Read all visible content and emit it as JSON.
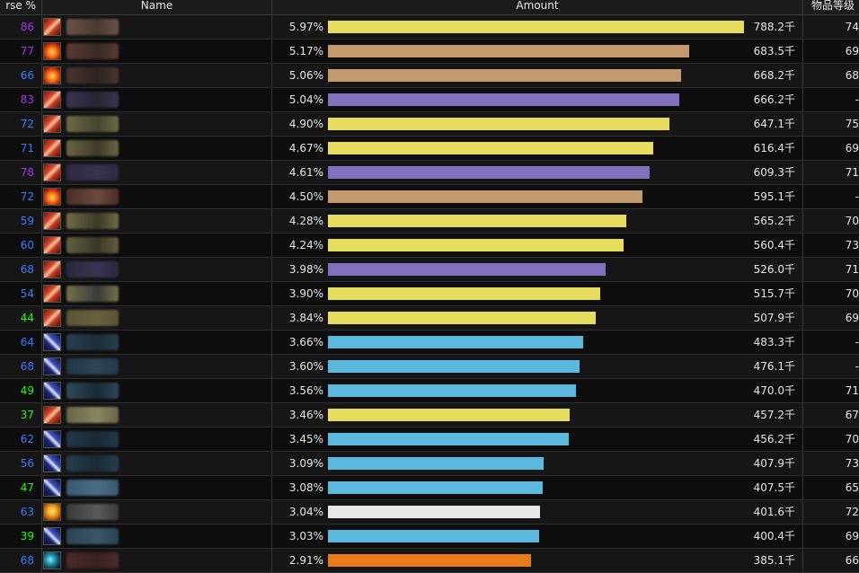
{
  "header": {
    "parse_label": "rse %",
    "name_label": "Name",
    "amount_label": "Amount",
    "ilvl_label": "物品等级"
  },
  "rows": [
    {
      "parse": "86",
      "parse_color": "#a335ee",
      "icon": "dh-icon",
      "icon_style": "icon-dh",
      "name_colors": [
        "#6b5346",
        "#4a3a33"
      ],
      "pct": "5.97%",
      "fraction": 0.5975,
      "bar_color": "#e6dd5e",
      "amount": "788.2千",
      "ilvl": "74"
    },
    {
      "parse": "77",
      "parse_color": "#a335ee",
      "icon": "fire-icon",
      "icon_style": "icon-fire",
      "name_colors": [
        "#5a3a33",
        "#3a2a24"
      ],
      "pct": "5.17%",
      "fraction": 0.5182,
      "bar_color": "#c29a6d",
      "amount": "683.5千",
      "ilvl": "69"
    },
    {
      "parse": "66",
      "parse_color": "#3a7bff",
      "icon": "fire-icon",
      "icon_style": "icon-fire",
      "name_colors": [
        "#4a3530",
        "#2e2320"
      ],
      "pct": "5.06%",
      "fraction": 0.5066,
      "bar_color": "#c29a6d",
      "amount": "668.2千",
      "ilvl": "68"
    },
    {
      "parse": "83",
      "parse_color": "#a335ee",
      "icon": "dh-icon",
      "icon_style": "icon-dh",
      "name_colors": [
        "#3c3355",
        "#2a2430"
      ],
      "pct": "5.04%",
      "fraction": 0.5051,
      "bar_color": "#8471bd",
      "amount": "666.2千",
      "ilvl": "-"
    },
    {
      "parse": "72",
      "parse_color": "#3a7bff",
      "icon": "dh-icon",
      "icon_style": "icon-dh",
      "name_colors": [
        "#6e6a48",
        "#474530"
      ],
      "pct": "4.90%",
      "fraction": 0.4906,
      "bar_color": "#e6dd5e",
      "amount": "647.1千",
      "ilvl": "75"
    },
    {
      "parse": "71",
      "parse_color": "#3a7bff",
      "icon": "dh-icon",
      "icon_style": "icon-dh",
      "name_colors": [
        "#6a6545",
        "#3e3b2a"
      ],
      "pct": "4.67%",
      "fraction": 0.4673,
      "bar_color": "#e6dd5e",
      "amount": "616.4千",
      "ilvl": "69"
    },
    {
      "parse": "78",
      "parse_color": "#a335ee",
      "icon": "dh-icon",
      "icon_style": "icon-dh",
      "name_colors": [
        "#2f2a44",
        "#3a3050"
      ],
      "pct": "4.61%",
      "fraction": 0.4619,
      "bar_color": "#8471bd",
      "amount": "609.3千",
      "ilvl": "71"
    },
    {
      "parse": "72",
      "parse_color": "#3a7bff",
      "icon": "fire-icon",
      "icon_style": "icon-fire",
      "name_colors": [
        "#4a3028",
        "#6a4a40"
      ],
      "pct": "4.50%",
      "fraction": 0.4512,
      "bar_color": "#c29a6d",
      "amount": "595.1千",
      "ilvl": "-"
    },
    {
      "parse": "59",
      "parse_color": "#3a7bff",
      "icon": "dh-icon",
      "icon_style": "icon-dh",
      "name_colors": [
        "#6e6b48",
        "#3c3a28"
      ],
      "pct": "4.28%",
      "fraction": 0.4285,
      "bar_color": "#e6dd5e",
      "amount": "565.2千",
      "ilvl": "70"
    },
    {
      "parse": "60",
      "parse_color": "#3a7bff",
      "icon": "dh-icon",
      "icon_style": "icon-dh",
      "name_colors": [
        "#625f40",
        "#3a3826"
      ],
      "pct": "4.24%",
      "fraction": 0.4249,
      "bar_color": "#e6dd5e",
      "amount": "560.4千",
      "ilvl": "73"
    },
    {
      "parse": "68",
      "parse_color": "#3a7bff",
      "icon": "dh-icon",
      "icon_style": "icon-dh",
      "name_colors": [
        "#2c2840",
        "#3a3352"
      ],
      "pct": "3.98%",
      "fraction": 0.3988,
      "bar_color": "#8471bd",
      "amount": "526.0千",
      "ilvl": "71"
    },
    {
      "parse": "54",
      "parse_color": "#3a7bff",
      "icon": "dh-icon",
      "icon_style": "icon-dh",
      "name_colors": [
        "#76714c",
        "#3a3a3a"
      ],
      "pct": "3.90%",
      "fraction": 0.391,
      "bar_color": "#e6dd5e",
      "amount": "515.7千",
      "ilvl": "70"
    },
    {
      "parse": "44",
      "parse_color": "#1eff00",
      "icon": "dh-icon",
      "icon_style": "icon-dh",
      "name_colors": [
        "#5a5535",
        "#6a6040"
      ],
      "pct": "3.84%",
      "fraction": 0.3851,
      "bar_color": "#e6dd5e",
      "amount": "507.9千",
      "ilvl": "69"
    },
    {
      "parse": "64",
      "parse_color": "#3a7bff",
      "icon": "blade-icon",
      "icon_style": "icon-blade",
      "name_colors": [
        "#2a3f50",
        "#1e2d38"
      ],
      "pct": "3.66%",
      "fraction": 0.3664,
      "bar_color": "#5cb8dd",
      "amount": "483.3千",
      "ilvl": "-"
    },
    {
      "parse": "68",
      "parse_color": "#3a7bff",
      "icon": "blade-icon",
      "icon_style": "icon-blade",
      "name_colors": [
        "#223848",
        "#2e4656"
      ],
      "pct": "3.60%",
      "fraction": 0.361,
      "bar_color": "#5cb8dd",
      "amount": "476.1千",
      "ilvl": "-"
    },
    {
      "parse": "49",
      "parse_color": "#1eff00",
      "icon": "blade-icon",
      "icon_style": "icon-blade",
      "name_colors": [
        "#2e4a5c",
        "#1a2a34"
      ],
      "pct": "3.56%",
      "fraction": 0.3563,
      "bar_color": "#5cb8dd",
      "amount": "470.0千",
      "ilvl": "71"
    },
    {
      "parse": "37",
      "parse_color": "#1eff00",
      "icon": "dh-icon",
      "icon_style": "icon-dh",
      "name_colors": [
        "#6a6548",
        "#8a8560"
      ],
      "pct": "3.46%",
      "fraction": 0.3467,
      "bar_color": "#e6dd5e",
      "amount": "457.2千",
      "ilvl": "67"
    },
    {
      "parse": "62",
      "parse_color": "#3a7bff",
      "icon": "blade-icon",
      "icon_style": "icon-blade",
      "name_colors": [
        "#223848",
        "#1a2a36"
      ],
      "pct": "3.45%",
      "fraction": 0.3459,
      "bar_color": "#5cb8dd",
      "amount": "456.2千",
      "ilvl": "70"
    },
    {
      "parse": "56",
      "parse_color": "#3a7bff",
      "icon": "blade-icon",
      "icon_style": "icon-blade",
      "name_colors": [
        "#283e4e",
        "#1a2a36"
      ],
      "pct": "3.09%",
      "fraction": 0.3093,
      "bar_color": "#5cb8dd",
      "amount": "407.9千",
      "ilvl": "73"
    },
    {
      "parse": "47",
      "parse_color": "#1eff00",
      "icon": "blade-icon",
      "icon_style": "icon-blade",
      "name_colors": [
        "#3a5a70",
        "#4a6c84"
      ],
      "pct": "3.08%",
      "fraction": 0.309,
      "bar_color": "#5cb8dd",
      "amount": "407.5千",
      "ilvl": "65"
    },
    {
      "parse": "63",
      "parse_color": "#3a7bff",
      "icon": "skull-icon",
      "icon_style": "icon-skull",
      "name_colors": [
        "#3a3a3a",
        "#5a5a5a"
      ],
      "pct": "3.04%",
      "fraction": 0.3046,
      "bar_color": "#e8e8e8",
      "amount": "401.6千",
      "ilvl": "72"
    },
    {
      "parse": "39",
      "parse_color": "#1eff00",
      "icon": "blade-icon",
      "icon_style": "icon-blade",
      "name_colors": [
        "#2a4456",
        "#3a5668"
      ],
      "pct": "3.03%",
      "fraction": 0.3037,
      "bar_color": "#5cb8dd",
      "amount": "400.4千",
      "ilvl": "69"
    },
    {
      "parse": "68",
      "parse_color": "#3a7bff",
      "icon": "shadow-icon",
      "icon_style": "icon-shadow",
      "name_colors": [
        "#4a2a28",
        "#3a2220"
      ],
      "pct": "2.91%",
      "fraction": 0.292,
      "bar_color": "#e87a1a",
      "amount": "385.1千",
      "ilvl": "66"
    }
  ]
}
